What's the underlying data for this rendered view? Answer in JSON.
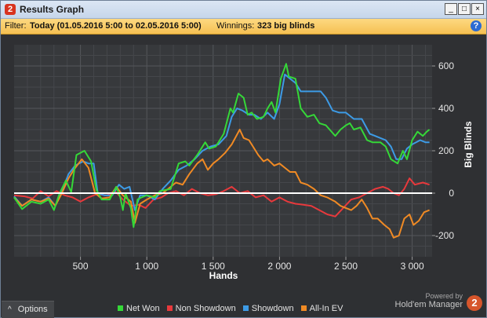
{
  "window": {
    "title": "Results Graph",
    "app_icon": "2",
    "buttons": [
      "_",
      "□",
      "×"
    ]
  },
  "filter": {
    "label": "Filter:",
    "value": "Today (01.05.2016 5:00 to 02.05.2016 5:00)",
    "winnings_label": "Winnings:",
    "winnings_value": "323 big blinds"
  },
  "footer": {
    "options_label": "Options",
    "options_icon": "^",
    "brand_line1": "Powered by",
    "brand_line2": "Hold'em Manager",
    "brand_logo": "2"
  },
  "colors": {
    "net_won": "#35d838",
    "non_showdown": "#e8393c",
    "showdown": "#3d9be6",
    "all_in_ev": "#f08a24"
  },
  "chart_data": {
    "type": "line",
    "xlabel": "Hands",
    "ylabel": "Big Blinds",
    "xlim": [
      0,
      3150
    ],
    "ylim": [
      -300,
      700
    ],
    "x_ticks": [
      500,
      1000,
      1500,
      2000,
      2500,
      3000
    ],
    "x_tick_labels": [
      "500",
      "1 000",
      "1 500",
      "2 000",
      "2 500",
      "3 000"
    ],
    "y_ticks": [
      -200,
      0,
      200,
      400,
      600
    ],
    "y_tick_labels": [
      "-200",
      "0",
      "200",
      "400",
      "600"
    ],
    "series": [
      {
        "name": "Net Won",
        "points": [
          [
            0,
            -20
          ],
          [
            60,
            -75
          ],
          [
            130,
            -40
          ],
          [
            200,
            -50
          ],
          [
            260,
            -30
          ],
          [
            300,
            -80
          ],
          [
            340,
            -5
          ],
          [
            390,
            60
          ],
          [
            430,
            5
          ],
          [
            470,
            180
          ],
          [
            530,
            200
          ],
          [
            580,
            150
          ],
          [
            620,
            15
          ],
          [
            660,
            -30
          ],
          [
            720,
            -30
          ],
          [
            770,
            30
          ],
          [
            800,
            -20
          ],
          [
            820,
            -80
          ],
          [
            840,
            0
          ],
          [
            880,
            -70
          ],
          [
            900,
            -160
          ],
          [
            930,
            -30
          ],
          [
            960,
            -20
          ],
          [
            1000,
            -10
          ],
          [
            1060,
            -20
          ],
          [
            1100,
            10
          ],
          [
            1180,
            20
          ],
          [
            1240,
            140
          ],
          [
            1290,
            150
          ],
          [
            1320,
            130
          ],
          [
            1380,
            180
          ],
          [
            1410,
            210
          ],
          [
            1440,
            240
          ],
          [
            1470,
            210
          ],
          [
            1520,
            220
          ],
          [
            1580,
            280
          ],
          [
            1630,
            400
          ],
          [
            1650,
            380
          ],
          [
            1690,
            470
          ],
          [
            1730,
            450
          ],
          [
            1760,
            370
          ],
          [
            1790,
            380
          ],
          [
            1830,
            350
          ],
          [
            1880,
            360
          ],
          [
            1910,
            400
          ],
          [
            1940,
            430
          ],
          [
            1970,
            380
          ],
          [
            2010,
            540
          ],
          [
            2050,
            610
          ],
          [
            2070,
            550
          ],
          [
            2120,
            540
          ],
          [
            2160,
            400
          ],
          [
            2210,
            360
          ],
          [
            2260,
            370
          ],
          [
            2300,
            330
          ],
          [
            2350,
            320
          ],
          [
            2420,
            270
          ],
          [
            2460,
            300
          ],
          [
            2500,
            320
          ],
          [
            2530,
            330
          ],
          [
            2560,
            300
          ],
          [
            2610,
            310
          ],
          [
            2660,
            250
          ],
          [
            2700,
            240
          ],
          [
            2760,
            240
          ],
          [
            2800,
            220
          ],
          [
            2840,
            160
          ],
          [
            2890,
            140
          ],
          [
            2930,
            200
          ],
          [
            2960,
            160
          ],
          [
            3000,
            250
          ],
          [
            3040,
            290
          ],
          [
            3080,
            270
          ],
          [
            3110,
            290
          ],
          [
            3130,
            300
          ]
        ]
      },
      {
        "name": "Non Showdown",
        "points": [
          [
            0,
            -10
          ],
          [
            80,
            -15
          ],
          [
            140,
            -25
          ],
          [
            200,
            10
          ],
          [
            260,
            -15
          ],
          [
            320,
            10
          ],
          [
            380,
            -10
          ],
          [
            440,
            -20
          ],
          [
            500,
            -40
          ],
          [
            560,
            -20
          ],
          [
            620,
            -5
          ],
          [
            700,
            -10
          ],
          [
            760,
            10
          ],
          [
            820,
            -30
          ],
          [
            880,
            -60
          ],
          [
            940,
            -55
          ],
          [
            990,
            -70
          ],
          [
            1050,
            -30
          ],
          [
            1110,
            -20
          ],
          [
            1160,
            0
          ],
          [
            1220,
            10
          ],
          [
            1280,
            -10
          ],
          [
            1340,
            20
          ],
          [
            1400,
            0
          ],
          [
            1460,
            -10
          ],
          [
            1520,
            -5
          ],
          [
            1580,
            10
          ],
          [
            1640,
            30
          ],
          [
            1700,
            0
          ],
          [
            1760,
            10
          ],
          [
            1820,
            -20
          ],
          [
            1880,
            -10
          ],
          [
            1940,
            -40
          ],
          [
            2000,
            -20
          ],
          [
            2060,
            -40
          ],
          [
            2120,
            -50
          ],
          [
            2180,
            -55
          ],
          [
            2240,
            -60
          ],
          [
            2300,
            -80
          ],
          [
            2360,
            -100
          ],
          [
            2420,
            -110
          ],
          [
            2480,
            -70
          ],
          [
            2540,
            -30
          ],
          [
            2600,
            -20
          ],
          [
            2660,
            0
          ],
          [
            2720,
            20
          ],
          [
            2780,
            30
          ],
          [
            2820,
            20
          ],
          [
            2860,
            0
          ],
          [
            2900,
            -10
          ],
          [
            2940,
            20
          ],
          [
            2980,
            70
          ],
          [
            3020,
            40
          ],
          [
            3080,
            50
          ],
          [
            3130,
            40
          ]
        ]
      },
      {
        "name": "Showdown",
        "points": [
          [
            0,
            -15
          ],
          [
            60,
            -60
          ],
          [
            130,
            -30
          ],
          [
            200,
            -40
          ],
          [
            260,
            -20
          ],
          [
            310,
            -60
          ],
          [
            360,
            10
          ],
          [
            410,
            90
          ],
          [
            460,
            130
          ],
          [
            520,
            150
          ],
          [
            560,
            140
          ],
          [
            600,
            140
          ],
          [
            630,
            0
          ],
          [
            680,
            -10
          ],
          [
            740,
            -10
          ],
          [
            790,
            40
          ],
          [
            830,
            20
          ],
          [
            870,
            30
          ],
          [
            910,
            -80
          ],
          [
            950,
            -10
          ],
          [
            1000,
            -10
          ],
          [
            1060,
            -30
          ],
          [
            1120,
            20
          ],
          [
            1180,
            60
          ],
          [
            1240,
            110
          ],
          [
            1300,
            130
          ],
          [
            1360,
            160
          ],
          [
            1420,
            200
          ],
          [
            1480,
            220
          ],
          [
            1540,
            230
          ],
          [
            1600,
            270
          ],
          [
            1640,
            360
          ],
          [
            1680,
            400
          ],
          [
            1720,
            390
          ],
          [
            1770,
            370
          ],
          [
            1810,
            370
          ],
          [
            1860,
            350
          ],
          [
            1910,
            380
          ],
          [
            1960,
            350
          ],
          [
            2000,
            420
          ],
          [
            2040,
            560
          ],
          [
            2080,
            540
          ],
          [
            2120,
            520
          ],
          [
            2160,
            480
          ],
          [
            2200,
            480
          ],
          [
            2250,
            480
          ],
          [
            2310,
            480
          ],
          [
            2350,
            450
          ],
          [
            2400,
            390
          ],
          [
            2450,
            380
          ],
          [
            2500,
            380
          ],
          [
            2560,
            350
          ],
          [
            2620,
            350
          ],
          [
            2680,
            280
          ],
          [
            2720,
            270
          ],
          [
            2760,
            260
          ],
          [
            2800,
            250
          ],
          [
            2840,
            220
          ],
          [
            2880,
            160
          ],
          [
            2920,
            160
          ],
          [
            2960,
            210
          ],
          [
            3000,
            230
          ],
          [
            3060,
            250
          ],
          [
            3100,
            240
          ],
          [
            3130,
            240
          ]
        ]
      },
      {
        "name": "All-In EV",
        "points": [
          [
            0,
            -20
          ],
          [
            60,
            -60
          ],
          [
            130,
            -30
          ],
          [
            200,
            -40
          ],
          [
            260,
            -25
          ],
          [
            310,
            -60
          ],
          [
            360,
            0
          ],
          [
            410,
            70
          ],
          [
            450,
            110
          ],
          [
            510,
            160
          ],
          [
            560,
            120
          ],
          [
            610,
            0
          ],
          [
            660,
            -25
          ],
          [
            720,
            -20
          ],
          [
            770,
            30
          ],
          [
            820,
            -10
          ],
          [
            880,
            -40
          ],
          [
            910,
            -140
          ],
          [
            950,
            -50
          ],
          [
            1000,
            -30
          ],
          [
            1060,
            -10
          ],
          [
            1120,
            0
          ],
          [
            1180,
            30
          ],
          [
            1220,
            50
          ],
          [
            1270,
            40
          ],
          [
            1320,
            90
          ],
          [
            1380,
            140
          ],
          [
            1420,
            160
          ],
          [
            1460,
            110
          ],
          [
            1500,
            140
          ],
          [
            1540,
            160
          ],
          [
            1590,
            190
          ],
          [
            1640,
            230
          ],
          [
            1700,
            300
          ],
          [
            1730,
            260
          ],
          [
            1770,
            250
          ],
          [
            1800,
            220
          ],
          [
            1840,
            180
          ],
          [
            1880,
            150
          ],
          [
            1910,
            160
          ],
          [
            1960,
            130
          ],
          [
            2000,
            140
          ],
          [
            2040,
            120
          ],
          [
            2080,
            100
          ],
          [
            2120,
            100
          ],
          [
            2160,
            50
          ],
          [
            2210,
            40
          ],
          [
            2260,
            20
          ],
          [
            2310,
            -10
          ],
          [
            2360,
            -20
          ],
          [
            2420,
            -40
          ],
          [
            2460,
            -60
          ],
          [
            2500,
            -70
          ],
          [
            2540,
            -80
          ],
          [
            2580,
            -60
          ],
          [
            2620,
            -30
          ],
          [
            2660,
            -70
          ],
          [
            2700,
            -120
          ],
          [
            2740,
            -120
          ],
          [
            2790,
            -150
          ],
          [
            2830,
            -170
          ],
          [
            2860,
            -210
          ],
          [
            2900,
            -200
          ],
          [
            2940,
            -120
          ],
          [
            2980,
            -100
          ],
          [
            3010,
            -150
          ],
          [
            3050,
            -130
          ],
          [
            3090,
            -90
          ],
          [
            3130,
            -80
          ]
        ]
      }
    ]
  }
}
